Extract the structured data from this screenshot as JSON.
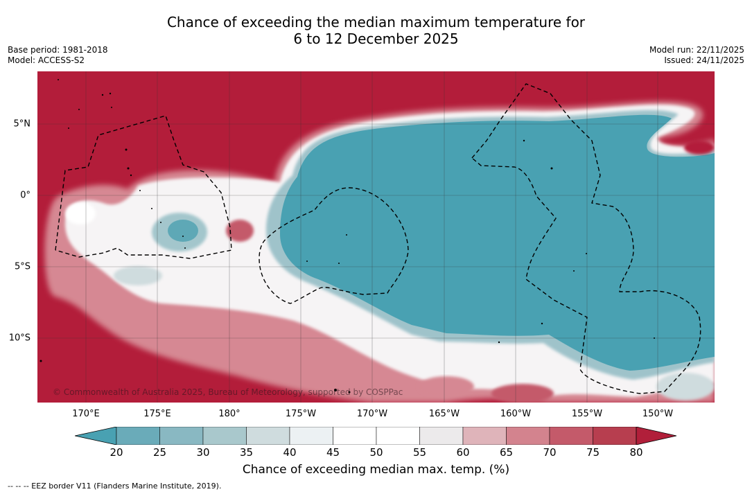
{
  "title": {
    "line1": "Chance of exceeding the median maximum temperature for",
    "line2": "6 to 12 December 2025"
  },
  "meta": {
    "base_period": "Base period: 1981-2018",
    "model": "Model: ACCESS-S2",
    "model_run": "Model run: 22/11/2025",
    "issued": "Issued: 24/11/2025"
  },
  "map": {
    "lon_ticks": [
      "170°E",
      "175°E",
      "180°",
      "175°W",
      "170°W",
      "165°W",
      "160°W",
      "155°W",
      "150°W"
    ],
    "lat_ticks": [
      "5°N",
      "0°",
      "5°S",
      "10°S"
    ],
    "copyright": "© Commonwealth of Australia 2025, Bureau of Meteorology, supported by COSPPac"
  },
  "colorbar": {
    "labels": [
      "20",
      "25",
      "30",
      "35",
      "40",
      "45",
      "50",
      "55",
      "60",
      "65",
      "70",
      "75",
      "80"
    ],
    "colors": [
      "#49a1b2",
      "#6aabb9",
      "#89b8c2",
      "#a9c8cc",
      "#cfdcde",
      "#ecf1f3",
      "#ffffff",
      "#ffffff",
      "#eceaeb",
      "#dfb4ba",
      "#d3838e",
      "#c45a6a",
      "#b73e4f",
      "#b11f3a"
    ],
    "title": "Chance of exceeding median max. temp. (%)"
  },
  "legend_note": "--  --  -- EEZ border V11 (Flanders Marine Institute, 2019).",
  "palette": {
    "hot": "#b31d3a",
    "cool": "#49a1b2"
  }
}
